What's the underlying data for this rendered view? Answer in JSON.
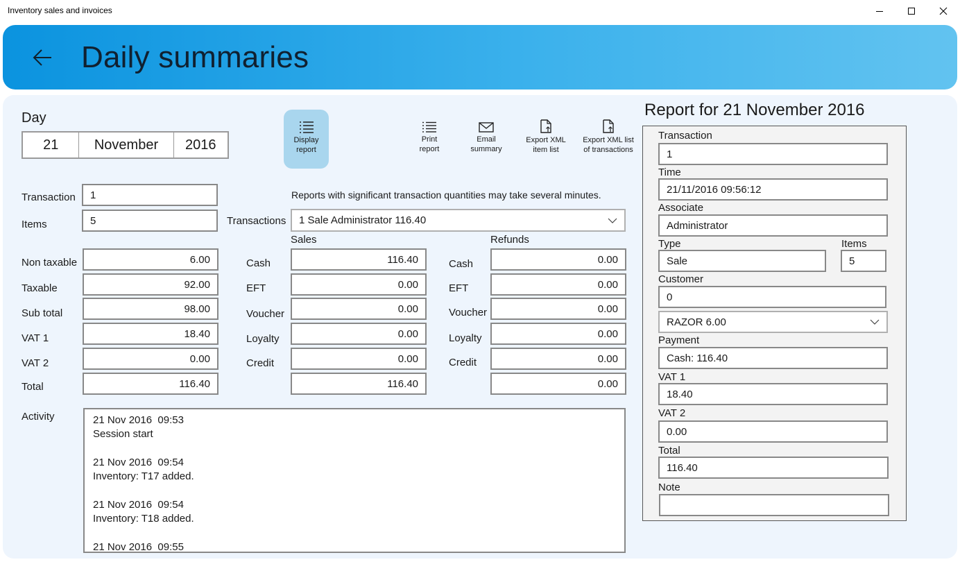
{
  "window": {
    "title": "Inventory sales and invoices"
  },
  "header": {
    "title": "Daily summaries"
  },
  "day": {
    "label": "Day",
    "date_day": "21",
    "date_month": "November",
    "date_year": "2016"
  },
  "toolbar": {
    "display_report": [
      "Display",
      "report"
    ],
    "print_report": [
      "Print",
      "report"
    ],
    "email_summary": [
      "Email",
      "summary"
    ],
    "export_items": [
      "Export XML",
      "item list"
    ],
    "export_transactions": [
      "Export XML list",
      "of transactions"
    ]
  },
  "notice": "Reports with significant transaction quantities may take several minutes.",
  "summary": {
    "transaction_label": "Transaction",
    "transaction_value": "1",
    "items_label": "Items",
    "items_value": "5",
    "transactions_label": "Transactions",
    "transactions_selected": "1 Sale Administrator 116.40",
    "rows": [
      {
        "label": "Non taxable",
        "value": "6.00"
      },
      {
        "label": "Taxable",
        "value": "92.00"
      },
      {
        "label": "Sub total",
        "value": "98.00"
      },
      {
        "label": "VAT 1",
        "value": "18.40"
      },
      {
        "label": "VAT 2",
        "value": "0.00"
      },
      {
        "label": "Total",
        "value": "116.40"
      }
    ]
  },
  "payments": {
    "sales_header": "Sales",
    "refunds_header": "Refunds",
    "rows": [
      {
        "label": "Cash",
        "sales": "116.40",
        "refunds": "0.00"
      },
      {
        "label": "EFT",
        "sales": "0.00",
        "refunds": "0.00"
      },
      {
        "label": "Voucher",
        "sales": "0.00",
        "refunds": "0.00"
      },
      {
        "label": "Loyalty",
        "sales": "0.00",
        "refunds": "0.00"
      },
      {
        "label": "Credit",
        "sales": "0.00",
        "refunds": "0.00"
      }
    ],
    "sales_total": "116.40",
    "refunds_total": "0.00"
  },
  "activity": {
    "label": "Activity",
    "entries": [
      {
        "time": "21 Nov 2016  09:53",
        "text": "Session start"
      },
      {
        "time": "21 Nov 2016  09:54",
        "text": "Inventory: T17 added."
      },
      {
        "time": "21 Nov 2016  09:54",
        "text": "Inventory: T18 added."
      },
      {
        "time": "21 Nov 2016  09:55",
        "text": ""
      }
    ]
  },
  "report": {
    "title": "Report for 21 November 2016",
    "transaction_label": "Transaction",
    "transaction_value": "1",
    "time_label": "Time",
    "time_value": "21/11/2016 09:56:12",
    "associate_label": "Associate",
    "associate_value": "Administrator",
    "type_label": "Type",
    "type_value": "Sale",
    "items_label": "Items",
    "items_value": "5",
    "customer_label": "Customer",
    "customer_value": "0",
    "line_item_selected": "RAZOR 6.00",
    "payment_label": "Payment",
    "payment_value": "Cash: 116.40",
    "vat1_label": "VAT 1",
    "vat1_value": "18.40",
    "vat2_label": "VAT 2",
    "vat2_value": "0.00",
    "total_label": "Total",
    "total_value": "116.40",
    "note_label": "Note",
    "note_value": ""
  }
}
